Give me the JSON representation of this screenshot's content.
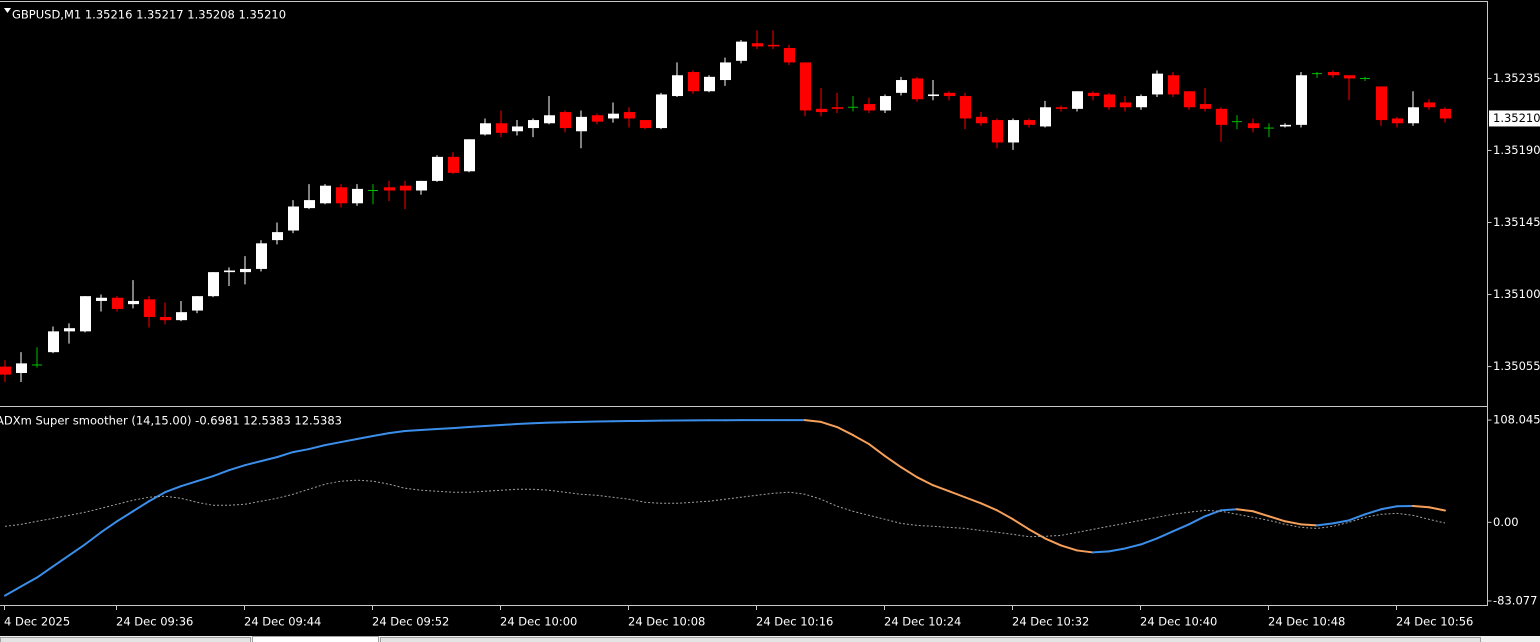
{
  "chart_data": [
    {
      "type": "candlestick",
      "title": "GBPUSD,M1  1.35216 1.35217 1.35208 1.35210",
      "open": [
        1.35055,
        1.35051,
        1.35056,
        1.35064,
        1.35077,
        1.35077,
        1.35096,
        1.35098,
        1.35094,
        1.35097,
        1.35086,
        1.35084,
        1.3509,
        1.35099,
        1.35114,
        1.35114,
        1.35116,
        1.35134,
        1.3514,
        1.35154,
        1.35157,
        1.35167,
        1.35157,
        1.35165,
        1.35167,
        1.35168,
        1.35165,
        1.35171,
        1.35186,
        1.35177,
        1.352,
        1.35207,
        1.35202,
        1.35204,
        1.35207,
        1.35214,
        1.35202,
        1.35212,
        1.3521,
        1.35214,
        1.35209,
        1.35204,
        1.35224,
        1.35239,
        1.35227,
        1.35234,
        1.35246,
        1.35257,
        1.35256,
        1.35254,
        1.35245,
        1.35216,
        1.35217,
        1.35217,
        1.35219,
        1.35215,
        1.35226,
        1.35235,
        1.35224,
        1.35226,
        1.35224,
        1.35211,
        1.35209,
        1.35195,
        1.35209,
        1.35205,
        1.35217,
        1.35216,
        1.35226,
        1.35225,
        1.3522,
        1.35217,
        1.35225,
        1.35237,
        1.35227,
        1.35219,
        1.35216,
        1.35208,
        1.35207,
        1.35204,
        1.35205,
        1.35206,
        1.35238,
        1.35239,
        1.35237,
        1.35235,
        1.3523,
        1.3521,
        1.35207,
        1.3522,
        1.35216
      ],
      "high": [
        1.35059,
        1.35064,
        1.35067,
        1.3508,
        1.35082,
        1.35099,
        1.351,
        1.35099,
        1.35109,
        1.35099,
        1.35095,
        1.35096,
        1.35099,
        1.35114,
        1.35117,
        1.35124,
        1.35134,
        1.35145,
        1.35159,
        1.35169,
        1.35169,
        1.35169,
        1.35169,
        1.35169,
        1.35171,
        1.35171,
        1.35171,
        1.35187,
        1.35189,
        1.35197,
        1.3521,
        1.35215,
        1.35209,
        1.3521,
        1.35224,
        1.35215,
        1.35215,
        1.35213,
        1.3522,
        1.35217,
        1.35209,
        1.35226,
        1.35245,
        1.3524,
        1.35237,
        1.35248,
        1.35259,
        1.35265,
        1.35265,
        1.35256,
        1.35245,
        1.35229,
        1.35226,
        1.35224,
        1.35223,
        1.35225,
        1.35236,
        1.35236,
        1.35234,
        1.35227,
        1.35226,
        1.35214,
        1.3521,
        1.3521,
        1.3521,
        1.35221,
        1.35218,
        1.35227,
        1.35227,
        1.35226,
        1.35224,
        1.35225,
        1.3524,
        1.35239,
        1.35227,
        1.35229,
        1.35217,
        1.35212,
        1.3521,
        1.35207,
        1.35207,
        1.35239,
        1.35239,
        1.3524,
        1.35237,
        1.35236,
        1.3523,
        1.35211,
        1.35227,
        1.35222,
        1.35217
      ],
      "low": [
        1.35046,
        1.35046,
        1.35055,
        1.35064,
        1.3507,
        1.35077,
        1.3509,
        1.3509,
        1.35092,
        1.3508,
        1.35082,
        1.35084,
        1.35089,
        1.35099,
        1.35106,
        1.35107,
        1.35115,
        1.35132,
        1.35139,
        1.35154,
        1.35157,
        1.35155,
        1.35156,
        1.35157,
        1.35159,
        1.35154,
        1.35163,
        1.35171,
        1.35176,
        1.35177,
        1.352,
        1.35199,
        1.352,
        1.35199,
        1.35207,
        1.35202,
        1.35192,
        1.35207,
        1.35208,
        1.35205,
        1.35204,
        1.35204,
        1.35224,
        1.35226,
        1.35227,
        1.35231,
        1.35245,
        1.35254,
        1.35254,
        1.35244,
        1.35212,
        1.35212,
        1.35214,
        1.35215,
        1.35214,
        1.35214,
        1.35225,
        1.35221,
        1.35222,
        1.35222,
        1.35204,
        1.35206,
        1.35192,
        1.35191,
        1.35205,
        1.35205,
        1.35215,
        1.35215,
        1.35222,
        1.35216,
        1.35215,
        1.35216,
        1.35224,
        1.35224,
        1.35216,
        1.35215,
        1.35196,
        1.35204,
        1.35202,
        1.35199,
        1.35205,
        1.35205,
        1.35236,
        1.35236,
        1.35222,
        1.35234,
        1.35206,
        1.35205,
        1.35206,
        1.35216,
        1.35208
      ],
      "close": [
        1.3505,
        1.35057,
        1.35056,
        1.35077,
        1.35079,
        1.35099,
        1.35098,
        1.35091,
        1.35096,
        1.35086,
        1.35084,
        1.35089,
        1.35099,
        1.35114,
        1.35115,
        1.35116,
        1.35132,
        1.35139,
        1.35155,
        1.35159,
        1.35168,
        1.35157,
        1.35166,
        1.35165,
        1.35165,
        1.35165,
        1.35171,
        1.35186,
        1.35176,
        1.35197,
        1.35207,
        1.35201,
        1.35205,
        1.35209,
        1.35212,
        1.35204,
        1.35211,
        1.35208,
        1.35213,
        1.3521,
        1.35204,
        1.35225,
        1.35237,
        1.35227,
        1.35236,
        1.35245,
        1.35258,
        1.35255,
        1.35255,
        1.35245,
        1.35215,
        1.35214,
        1.35216,
        1.35217,
        1.35215,
        1.35224,
        1.35234,
        1.35222,
        1.35225,
        1.35224,
        1.3521,
        1.35207,
        1.35195,
        1.35209,
        1.35206,
        1.35217,
        1.35216,
        1.35227,
        1.35224,
        1.35217,
        1.35217,
        1.35224,
        1.35238,
        1.35225,
        1.35217,
        1.35216,
        1.35206,
        1.35208,
        1.35204,
        1.35204,
        1.35206,
        1.35237,
        1.35238,
        1.35237,
        1.35235,
        1.35235,
        1.35209,
        1.35207,
        1.35217,
        1.35217,
        1.3521
      ],
      "up_color": "#ffffff",
      "down_color": "#ff0000",
      "doji_color": "#00c000",
      "ylim": [
        1.35031,
        1.35284
      ],
      "yticks": [
        1.35235,
        {
          "value": 1.3519,
          "label": "1.35190"
        },
        1.35145,
        {
          "value": 1.351,
          "label": "1.35100"
        },
        1.35055
      ],
      "current_price": {
        "value": 1.3521,
        "label": "1.35210"
      },
      "grid": false
    },
    {
      "type": "line",
      "title": "ADXm Super smoother (14,15.00) -0.6981 12.5383 12.5383",
      "categories": [
        "4 Dec 2025",
        null,
        null,
        null,
        null,
        null,
        null,
        "24 Dec 09:36",
        null,
        null,
        null,
        null,
        null,
        null,
        null,
        "24 Dec 09:44",
        null,
        null,
        null,
        null,
        null,
        null,
        null,
        "24 Dec 09:52",
        null,
        null,
        null,
        null,
        null,
        null,
        null,
        "24 Dec 10:00",
        null,
        null,
        null,
        null,
        null,
        null,
        null,
        "24 Dec 10:08",
        null,
        null,
        null,
        null,
        null,
        null,
        null,
        "24 Dec 10:16",
        null,
        null,
        null,
        null,
        null,
        null,
        null,
        "24 Dec 10:24",
        null,
        null,
        null,
        null,
        null,
        null,
        null,
        "24 Dec 10:32",
        null,
        null,
        null,
        null,
        null,
        null,
        null,
        "24 Dec 10:40",
        null,
        null,
        null,
        null,
        null,
        null,
        null,
        "24 Dec 10:48",
        null,
        null,
        null,
        null,
        null,
        null,
        null,
        "24 Dec 10:56",
        null,
        null,
        null
      ],
      "series": [
        {
          "up_color": "#3b8eea",
          "down_color": "#f5a05a",
          "style": "solid",
          "values": [
            -77.4,
            -67.8,
            -58.3,
            -46.6,
            -35.0,
            -23.3,
            -10.6,
            1.1,
            11.7,
            22.3,
            31.8,
            38.2,
            43.5,
            48.8,
            55.1,
            60.4,
            64.7,
            68.9,
            74.2,
            77.4,
            81.6,
            84.8,
            88.0,
            91.2,
            94.3,
            96.5,
            97.5,
            98.6,
            99.6,
            100.7,
            101.8,
            102.8,
            103.9,
            104.7,
            105.3,
            105.8,
            106.2,
            106.5,
            106.8,
            107.0,
            107.2,
            107.4,
            107.6,
            107.7,
            107.8,
            107.9,
            107.95,
            108.0,
            108.02,
            108.04,
            108.045,
            106.1,
            100.7,
            92.2,
            82.7,
            70.0,
            58.3,
            47.7,
            39.2,
            32.9,
            26.5,
            20.1,
            12.7,
            3.2,
            -7.4,
            -17.0,
            -24.4,
            -29.7,
            -31.8,
            -30.7,
            -27.6,
            -23.3,
            -17.0,
            -9.5,
            -2.1,
            6.4,
            12.7,
            13.8,
            11.7,
            6.4,
            1.1,
            -2.1,
            -3.2,
            -1.1,
            2.1,
            8.5,
            13.8,
            17.0,
            17.2,
            15.9,
            12.5383
          ]
        },
        {
          "color": "#a0a0a0",
          "style": "dotted",
          "values": [
            -4.2,
            -2.1,
            1.1,
            4.2,
            7.4,
            10.6,
            14.8,
            19.1,
            23.3,
            26.5,
            27.6,
            25.4,
            21.2,
            18.0,
            18.0,
            19.1,
            22.3,
            25.4,
            29.7,
            35.0,
            40.3,
            43.5,
            44.5,
            43.5,
            40.3,
            36.0,
            33.9,
            32.9,
            31.8,
            31.8,
            32.9,
            33.9,
            35.0,
            35.0,
            33.9,
            31.8,
            29.7,
            28.6,
            26.5,
            24.4,
            21.2,
            20.1,
            20.1,
            21.2,
            22.3,
            24.4,
            26.5,
            28.6,
            30.7,
            31.8,
            29.7,
            24.4,
            17.0,
            11.7,
            7.4,
            3.2,
            -1.1,
            -3.2,
            -4.2,
            -5.3,
            -6.4,
            -8.5,
            -10.6,
            -12.7,
            -15.2,
            -14.8,
            -13.8,
            -10.6,
            -7.4,
            -4.2,
            -1.1,
            2.1,
            5.3,
            8.5,
            10.6,
            12.7,
            11.7,
            8.5,
            5.3,
            2.1,
            -2.1,
            -5.3,
            -6.4,
            -4.2,
            0,
            5.3,
            8.5,
            9.5,
            7.4,
            3.2,
            -0.6981
          ]
        }
      ],
      "ylim": [
        -88.4,
        120.8
      ],
      "yticks": [
        108.045,
        {
          "value": 0,
          "label": "0.00"
        },
        -83.077
      ],
      "grid": false
    }
  ]
}
